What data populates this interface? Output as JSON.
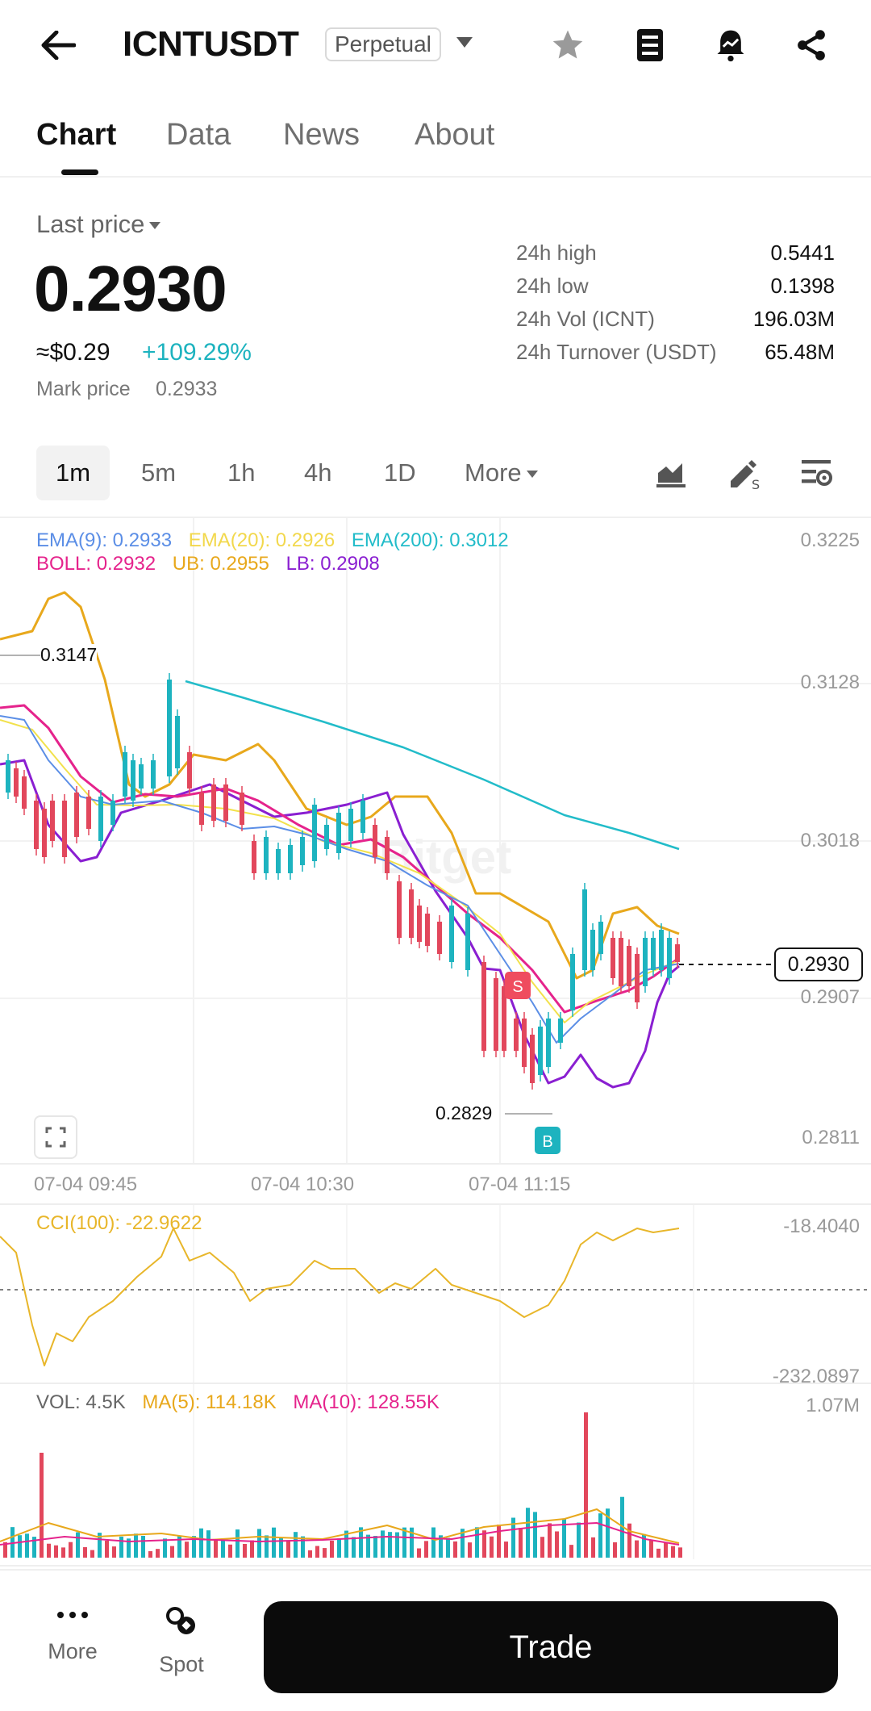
{
  "header": {
    "symbol": "ICNTUSDT",
    "contract_type": "Perpetual"
  },
  "tabs": [
    {
      "label": "Chart",
      "active": true
    },
    {
      "label": "Data"
    },
    {
      "label": "News"
    },
    {
      "label": "About"
    }
  ],
  "price": {
    "label": "Last price",
    "last": "0.2930",
    "usd": "≈$0.29",
    "change": "+109.29%",
    "mark_label": "Mark price",
    "mark_value": "0.2933"
  },
  "stats": [
    {
      "label": "24h high",
      "value": "0.5441"
    },
    {
      "label": "24h low",
      "value": "0.1398"
    },
    {
      "label": "24h Vol (ICNT)",
      "value": "196.03M"
    },
    {
      "label": "24h Turnover (USDT)",
      "value": "65.48M"
    }
  ],
  "intervals": {
    "items": [
      "1m",
      "5m",
      "1h",
      "4h",
      "1D"
    ],
    "active": "1m",
    "more_label": "More"
  },
  "indicators": {
    "ema9": "EMA(9): 0.2933",
    "ema20": "EMA(20): 0.2926",
    "ema200": "EMA(200): 0.3012",
    "boll": "BOLL: 0.2932",
    "ub": "UB: 0.2955",
    "lb": "LB: 0.2908",
    "cci": "CCI(100): -22.9622",
    "vol": "VOL: 4.5K",
    "ma5": "MA(5): 114.18K",
    "ma10": "MA(10): 128.55K"
  },
  "colors": {
    "ema9": "#5b8ee6",
    "ema20": "#f2e14c",
    "ema200": "#22bcc9",
    "boll": "#e5238c",
    "ub": "#e8a81c",
    "lb": "#8a1fd1",
    "up": "#1db3bf",
    "down": "#e2475c",
    "cci": "#e8b62a"
  },
  "price_axis": [
    "0.3225",
    "0.3128",
    "0.3018",
    "0.2907",
    "0.2811"
  ],
  "current_price_tag": "0.2930",
  "high_marker": "0.3147",
  "low_marker": "0.2829",
  "sell_marker": "S",
  "buy_marker": "B",
  "time_axis": [
    "07-04 09:45",
    "07-04 10:30",
    "07-04 11:15"
  ],
  "cci_axis": [
    "-18.4040",
    "-232.0897"
  ],
  "vol_axis": [
    "1.07M"
  ],
  "watermark": "Bitget",
  "bottom_nav": {
    "more_label": "More",
    "spot_label": "Spot",
    "trade_label": "Trade"
  }
}
